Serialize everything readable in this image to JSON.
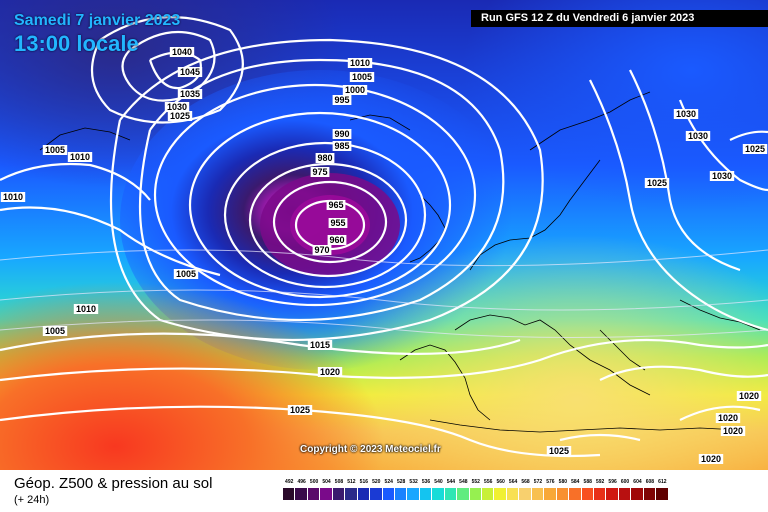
{
  "header": {
    "date_label": "Samedi 7 janvier 2023",
    "time_label": "13:00 locale",
    "run_label": "Run GFS 12 Z du Vendredi 6 janvier 2023"
  },
  "copyright": "Copyright © 2023 Meteociel.fr",
  "caption": {
    "title": "Géop. Z500 & pression au sol",
    "subtitle": "(+ 24h)"
  },
  "pressure_labels": [
    {
      "text": "1040"
    },
    {
      "text": "1045"
    },
    {
      "text": "1035"
    },
    {
      "text": "1030"
    },
    {
      "text": "1025"
    },
    {
      "text": "1005"
    },
    {
      "text": "1010"
    },
    {
      "text": "1010"
    },
    {
      "text": "1010"
    },
    {
      "text": "1005"
    },
    {
      "text": "1000"
    },
    {
      "text": "995"
    },
    {
      "text": "990"
    },
    {
      "text": "985"
    },
    {
      "text": "980"
    },
    {
      "text": "975"
    },
    {
      "text": "965"
    },
    {
      "text": "955"
    },
    {
      "text": "960"
    },
    {
      "text": "970"
    },
    {
      "text": "1005"
    },
    {
      "text": "1010"
    },
    {
      "text": "1005"
    },
    {
      "text": "1015"
    },
    {
      "text": "1020"
    },
    {
      "text": "1025"
    },
    {
      "text": "1030"
    },
    {
      "text": "1030"
    },
    {
      "text": "1025"
    },
    {
      "text": "1030"
    },
    {
      "text": "1025"
    },
    {
      "text": "1025"
    },
    {
      "text": "1020"
    },
    {
      "text": "1020"
    },
    {
      "text": "1020"
    },
    {
      "text": "1020"
    }
  ],
  "legend": {
    "values": [
      "492",
      "496",
      "500",
      "504",
      "508",
      "512",
      "516",
      "520",
      "524",
      "528",
      "532",
      "536",
      "540",
      "544",
      "548",
      "552",
      "556",
      "560",
      "564",
      "568",
      "572",
      "576",
      "580",
      "584",
      "588",
      "592",
      "596",
      "600",
      "604",
      "608",
      "612"
    ],
    "colors": [
      "#2a0a2a",
      "#3a0a4a",
      "#5a0a6a",
      "#7a0a8a",
      "#3a1a6e",
      "#2a2a8a",
      "#1a2ab4",
      "#1a3ad4",
      "#1a5aff",
      "#1a82ff",
      "#1aa6ff",
      "#14c4f0",
      "#18dcd8",
      "#30e6b4",
      "#60ec80",
      "#96f050",
      "#c8f038",
      "#f0f032",
      "#f8e052",
      "#f8d06e",
      "#f8c050",
      "#f8a838",
      "#f89030",
      "#f87028",
      "#f85020",
      "#e83018",
      "#d01810",
      "#b81010",
      "#a00808",
      "#800404",
      "#600000"
    ]
  }
}
